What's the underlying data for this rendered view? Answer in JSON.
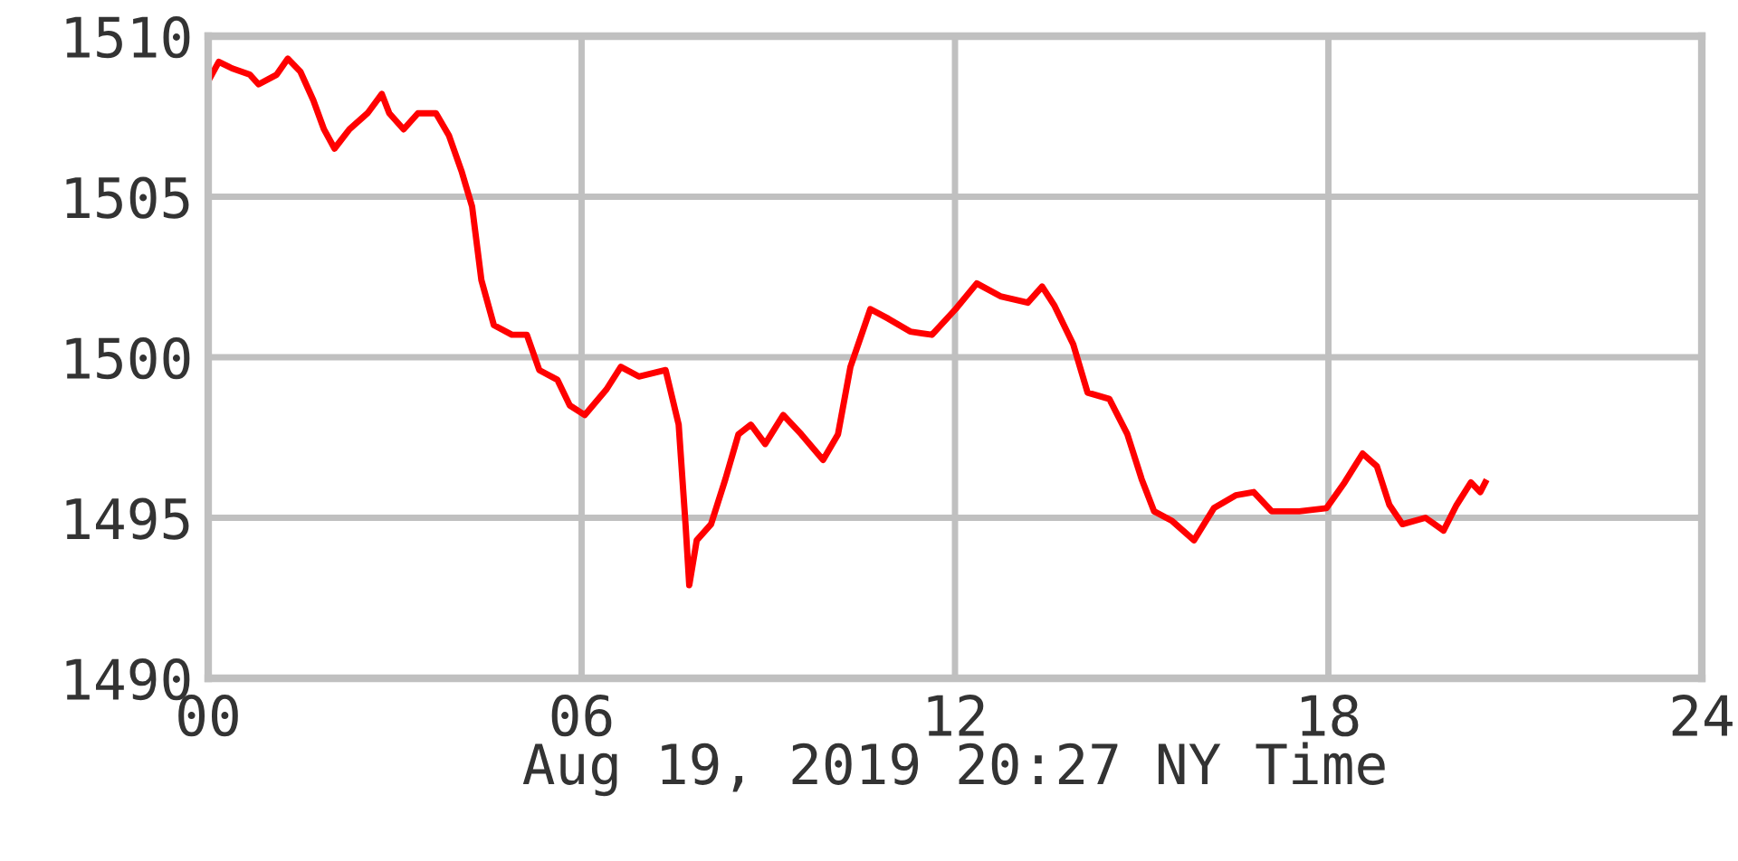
{
  "chart_data": {
    "type": "line",
    "xlabel": "Aug 19, 2019 20:27 NY Time",
    "x": [
      0.0,
      0.17,
      0.38,
      0.67,
      0.81,
      1.1,
      1.28,
      1.48,
      1.69,
      1.86,
      2.03,
      2.27,
      2.56,
      2.79,
      2.91,
      3.14,
      3.37,
      3.66,
      3.87,
      4.07,
      4.24,
      4.39,
      4.59,
      4.88,
      5.12,
      5.32,
      5.61,
      5.81,
      6.05,
      6.4,
      6.63,
      6.92,
      7.35,
      7.56,
      7.67,
      7.73,
      7.85,
      8.08,
      8.31,
      8.52,
      8.72,
      8.95,
      9.24,
      9.53,
      9.88,
      10.12,
      10.32,
      10.64,
      10.93,
      11.28,
      11.63,
      12.01,
      12.35,
      12.73,
      13.17,
      13.4,
      13.6,
      13.9,
      14.13,
      14.48,
      14.77,
      15.0,
      15.2,
      15.49,
      15.84,
      16.16,
      16.51,
      16.8,
      17.09,
      17.53,
      17.97,
      18.26,
      18.55,
      18.78,
      18.98,
      19.19,
      19.56,
      19.85,
      20.06,
      20.29,
      20.44,
      20.52
    ],
    "series": [
      {
        "color": "#ff0000",
        "values": [
          1508.6,
          1509.2,
          1509.0,
          1508.8,
          1508.5,
          1508.8,
          1509.3,
          1508.9,
          1508.0,
          1507.1,
          1506.5,
          1507.1,
          1507.6,
          1508.2,
          1507.6,
          1507.1,
          1507.6,
          1507.6,
          1506.9,
          1505.8,
          1504.7,
          1502.4,
          1501.0,
          1500.7,
          1500.7,
          1499.6,
          1499.3,
          1498.5,
          1498.2,
          1499.0,
          1499.7,
          1499.4,
          1499.6,
          1497.9,
          1494.8,
          1492.9,
          1494.3,
          1494.8,
          1496.2,
          1497.6,
          1497.9,
          1497.3,
          1498.2,
          1497.6,
          1496.8,
          1497.6,
          1499.7,
          1501.5,
          1501.2,
          1500.8,
          1500.7,
          1501.5,
          1502.3,
          1501.9,
          1501.7,
          1502.2,
          1501.6,
          1500.4,
          1498.9,
          1498.7,
          1497.6,
          1496.2,
          1495.2,
          1494.9,
          1494.3,
          1495.3,
          1495.7,
          1495.8,
          1495.2,
          1495.2,
          1495.3,
          1496.1,
          1497.0,
          1496.6,
          1495.4,
          1494.8,
          1495.0,
          1494.6,
          1495.4,
          1496.1,
          1495.8,
          1496.1
        ]
      }
    ],
    "xlim": [
      0,
      24
    ],
    "xticks": [
      {
        "value": 0,
        "label": "00"
      },
      {
        "value": 6,
        "label": "06"
      },
      12,
      18,
      24
    ],
    "ylim": [
      1490,
      1510
    ],
    "yticks": [
      1490,
      1495,
      1500,
      1505,
      1510
    ],
    "grid": true,
    "line_style": "solid",
    "marker": "none",
    "legend": false
  }
}
